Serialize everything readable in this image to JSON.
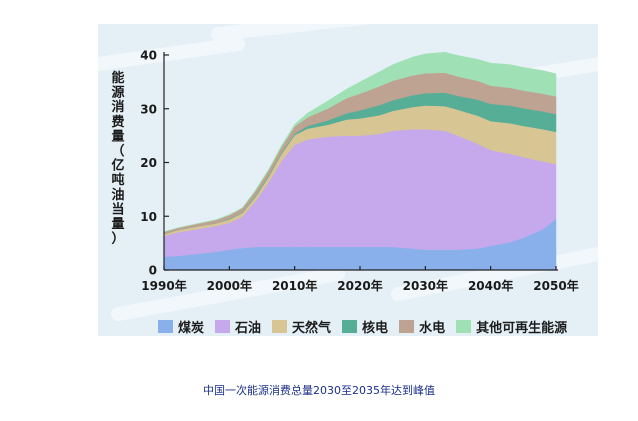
{
  "caption": "中国一次能源消费总量2030至2035年达到峰值",
  "chart_data": {
    "type": "area",
    "stacked": true,
    "ylabel": "能源消费量（亿吨油当量）",
    "ylim": [
      0,
      40
    ],
    "yticks": [
      0,
      10,
      20,
      30,
      40
    ],
    "xlim": [
      1990,
      2050
    ],
    "xticks": [
      "1990年",
      "2000年",
      "2010年",
      "2020年",
      "2030年",
      "2040年",
      "2050年"
    ],
    "grid": false,
    "legend_position": "bottom",
    "x": [
      1990,
      1992,
      1995,
      1998,
      2000,
      2002,
      2004,
      2006,
      2008,
      2010,
      2012,
      2015,
      2018,
      2020,
      2023,
      2025,
      2028,
      2030,
      2033,
      2035,
      2038,
      2040,
      2043,
      2045,
      2048,
      2050
    ],
    "series": [
      {
        "name": "煤炭",
        "color": "#8ab0ec",
        "values": [
          2.5,
          2.6,
          3.0,
          3.4,
          3.8,
          4.1,
          4.3,
          4.3,
          4.3,
          4.3,
          4.3,
          4.3,
          4.3,
          4.3,
          4.3,
          4.3,
          4.0,
          3.8,
          3.8,
          3.8,
          4.0,
          4.5,
          5.2,
          6.0,
          7.6,
          9.5
        ]
      },
      {
        "name": "石油",
        "color": "#c5a9ec",
        "values": [
          3.8,
          4.4,
          4.6,
          4.8,
          5.0,
          5.8,
          8.5,
          12.0,
          16.0,
          19.0,
          20.0,
          20.5,
          20.7,
          20.7,
          21.0,
          21.6,
          22.2,
          22.4,
          22.1,
          21.2,
          19.5,
          17.8,
          16.4,
          15.0,
          12.6,
          10.2
        ]
      },
      {
        "name": "天然气",
        "color": "#d8c594",
        "values": [
          0.4,
          0.4,
          0.5,
          0.5,
          0.6,
          0.7,
          0.8,
          1.0,
          1.3,
          1.8,
          2.0,
          2.2,
          3.0,
          3.2,
          3.5,
          3.7,
          4.1,
          4.4,
          4.6,
          4.8,
          5.2,
          5.4,
          5.7,
          5.8,
          6.0,
          6.0
        ]
      },
      {
        "name": "核电",
        "color": "#56ae97",
        "values": [
          0.0,
          0.0,
          0.0,
          0.0,
          0.1,
          0.1,
          0.2,
          0.2,
          0.2,
          0.3,
          0.5,
          0.8,
          1.2,
          1.5,
          1.9,
          2.0,
          2.2,
          2.3,
          2.5,
          2.6,
          3.0,
          3.2,
          3.3,
          3.3,
          3.3,
          3.3
        ]
      },
      {
        "name": "水电",
        "color": "#bea292",
        "values": [
          0.4,
          0.4,
          0.5,
          0.6,
          0.7,
          0.8,
          0.9,
          1.0,
          1.1,
          1.3,
          1.6,
          2.2,
          2.8,
          3.1,
          3.5,
          3.6,
          3.7,
          3.7,
          3.7,
          3.6,
          3.5,
          3.4,
          3.3,
          3.3,
          3.3,
          3.3
        ]
      },
      {
        "name": "其他可再生能源",
        "color": "#9fe1b4",
        "values": [
          0.0,
          0.0,
          0.0,
          0.1,
          0.1,
          0.1,
          0.2,
          0.2,
          0.3,
          0.4,
          0.8,
          1.4,
          1.7,
          2.2,
          2.7,
          3.0,
          3.4,
          3.6,
          3.8,
          3.9,
          4.0,
          4.2,
          4.3,
          4.3,
          4.3,
          4.2
        ]
      }
    ]
  }
}
